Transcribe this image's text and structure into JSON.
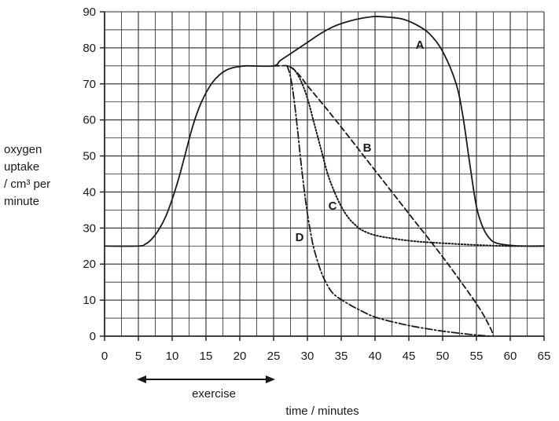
{
  "chart_data": {
    "type": "line",
    "xlabel": "time / minutes",
    "ylabel_lines": [
      "oxygen",
      "uptake",
      "/ cm³ per",
      "minute"
    ],
    "xlim": [
      0,
      65
    ],
    "ylim": [
      0,
      90
    ],
    "x_ticks": [
      0,
      5,
      10,
      15,
      20,
      25,
      30,
      35,
      40,
      45,
      50,
      55,
      60,
      65
    ],
    "y_ticks": [
      0,
      10,
      20,
      30,
      40,
      50,
      60,
      70,
      80,
      90
    ],
    "minor_grid_x": 2.5,
    "minor_grid_y": 5,
    "grid": true,
    "annotation": {
      "text": "exercise",
      "arrow_from": 5,
      "arrow_to": 25
    },
    "series": [
      {
        "name": "A",
        "style": "solid",
        "points": [
          [
            0,
            25
          ],
          [
            5,
            25
          ],
          [
            6,
            25.5
          ],
          [
            7,
            27
          ],
          [
            8,
            29.5
          ],
          [
            9,
            33
          ],
          [
            10,
            38
          ],
          [
            11,
            44
          ],
          [
            12,
            51
          ],
          [
            13,
            58
          ],
          [
            14,
            63.5
          ],
          [
            15,
            67.5
          ],
          [
            16,
            70.5
          ],
          [
            17,
            72.5
          ],
          [
            18,
            73.8
          ],
          [
            19,
            74.5
          ],
          [
            20,
            74.8
          ],
          [
            21,
            75
          ],
          [
            25,
            75
          ],
          [
            26,
            76.5
          ],
          [
            28,
            79
          ],
          [
            30,
            81.5
          ],
          [
            32,
            84
          ],
          [
            34,
            86
          ],
          [
            36,
            87.3
          ],
          [
            38,
            88.2
          ],
          [
            40,
            88.7
          ],
          [
            42,
            88.5
          ],
          [
            44,
            88
          ],
          [
            46,
            86.5
          ],
          [
            48,
            84
          ],
          [
            50,
            79
          ],
          [
            52,
            70
          ],
          [
            53,
            61
          ],
          [
            54,
            48
          ],
          [
            55,
            36
          ],
          [
            56,
            30
          ],
          [
            57,
            27
          ],
          [
            58,
            25.8
          ],
          [
            60,
            25.2
          ],
          [
            62,
            25
          ],
          [
            65,
            25
          ]
        ]
      },
      {
        "name": "B",
        "style": "dashed",
        "points": [
          [
            25,
            75
          ],
          [
            26,
            75
          ],
          [
            27,
            75
          ],
          [
            28,
            74
          ],
          [
            29,
            72
          ],
          [
            30,
            69.5
          ],
          [
            32,
            65
          ],
          [
            35,
            58
          ],
          [
            40,
            46
          ],
          [
            45,
            34
          ],
          [
            50,
            22
          ],
          [
            55,
            9
          ],
          [
            57,
            2.5
          ],
          [
            57.5,
            0
          ]
        ]
      },
      {
        "name": "C",
        "style": "dotted",
        "points": [
          [
            27,
            75
          ],
          [
            28,
            74
          ],
          [
            29,
            71
          ],
          [
            30,
            66
          ],
          [
            31,
            59
          ],
          [
            32,
            52
          ],
          [
            33,
            45
          ],
          [
            34,
            40
          ],
          [
            35,
            36
          ],
          [
            36,
            33
          ],
          [
            37,
            31
          ],
          [
            38,
            29.5
          ],
          [
            40,
            28
          ],
          [
            43,
            27
          ],
          [
            46,
            26.3
          ],
          [
            50,
            25.8
          ],
          [
            55,
            25.3
          ],
          [
            60,
            25
          ],
          [
            65,
            25
          ]
        ]
      },
      {
        "name": "D",
        "style": "dashdot",
        "points": [
          [
            27,
            75
          ],
          [
            27.5,
            72
          ],
          [
            28,
            66
          ],
          [
            28.5,
            58
          ],
          [
            29,
            49
          ],
          [
            29.5,
            41
          ],
          [
            30,
            34
          ],
          [
            30.5,
            28.5
          ],
          [
            31,
            24
          ],
          [
            32,
            18
          ],
          [
            33,
            14
          ],
          [
            34,
            11.5
          ],
          [
            36,
            9
          ],
          [
            38,
            7
          ],
          [
            40,
            5.3
          ],
          [
            43,
            3.8
          ],
          [
            46,
            2.6
          ],
          [
            50,
            1.4
          ],
          [
            54,
            0.5
          ],
          [
            57,
            0
          ]
        ]
      }
    ]
  }
}
